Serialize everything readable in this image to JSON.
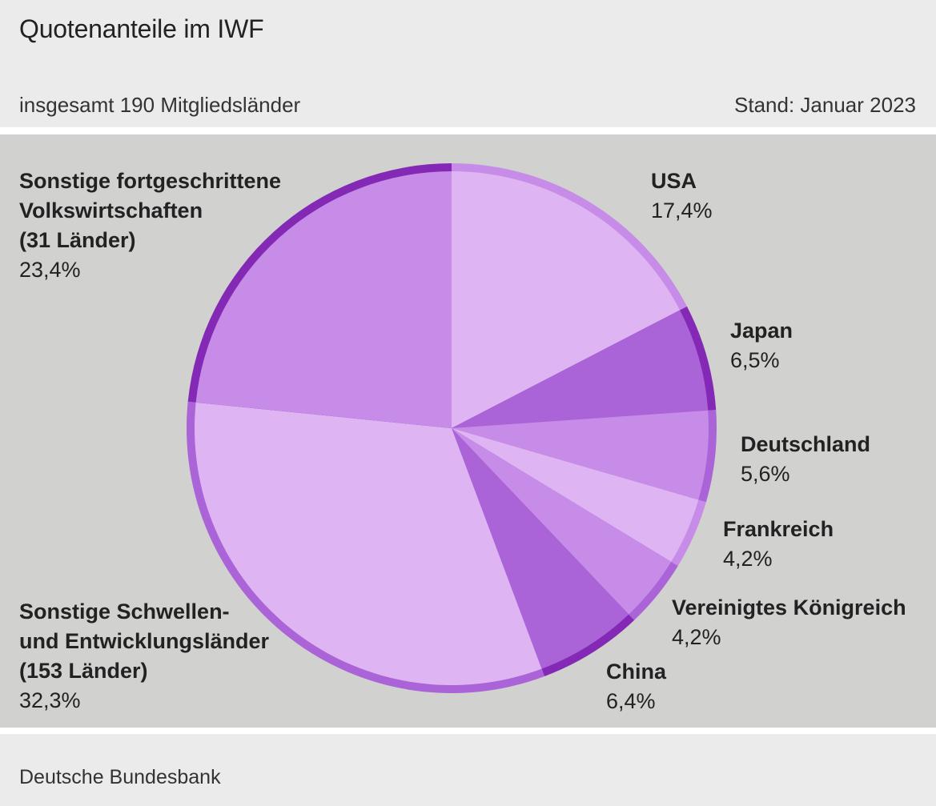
{
  "header": {
    "title": "Quotenanteile im IWF",
    "subtitle": "insgesamt 190 Mitgliedsländer",
    "stand": "Stand: Januar 2023"
  },
  "footer": {
    "source": "Deutsche Bundesbank"
  },
  "chart_data": {
    "type": "pie",
    "title": "Quotenanteile im IWF",
    "slices": [
      {
        "label": "USA",
        "value": 17.4,
        "value_label": "17,4%",
        "fill": "#dfb4f2",
        "rim": "#c78be8"
      },
      {
        "label": "Japan",
        "value": 6.5,
        "value_label": "6,5%",
        "fill": "#ab63d8",
        "rim": "#8329b5"
      },
      {
        "label": "Deutschland",
        "value": 5.6,
        "value_label": "5,6%",
        "fill": "#c78be8",
        "rim": "#ab63d8"
      },
      {
        "label": "Frankreich",
        "value": 4.2,
        "value_label": "4,2%",
        "fill": "#dfb4f2",
        "rim": "#c78be8"
      },
      {
        "label": "Vereinigtes Königreich",
        "value": 4.2,
        "value_label": "4,2%",
        "fill": "#c78be8",
        "rim": "#ab63d8"
      },
      {
        "label": "China",
        "value": 6.4,
        "value_label": "6,4%",
        "fill": "#ab63d8",
        "rim": "#8329b5"
      },
      {
        "label": "Sonstige Schwellen- und Entwicklungsländer (153 Länder)",
        "label_lines": [
          "Sonstige Schwellen-",
          "und Entwicklungsländer",
          "(153 Länder)"
        ],
        "value": 32.3,
        "value_label": "32,3%",
        "fill": "#dfb4f2",
        "rim": "#ab63d8"
      },
      {
        "label": "Sonstige fortgeschrittene Volkswirtschaften (31 Länder)",
        "label_lines": [
          "Sonstige fortgeschrittene",
          "Volkswirtschaften",
          "(31 Länder)"
        ],
        "value": 23.4,
        "value_label": "23,4%",
        "fill": "#c78be8",
        "rim": "#8329b5"
      }
    ],
    "start_angle": "12 o'clock",
    "direction": "clockwise",
    "legend": "none (direct labels)"
  }
}
